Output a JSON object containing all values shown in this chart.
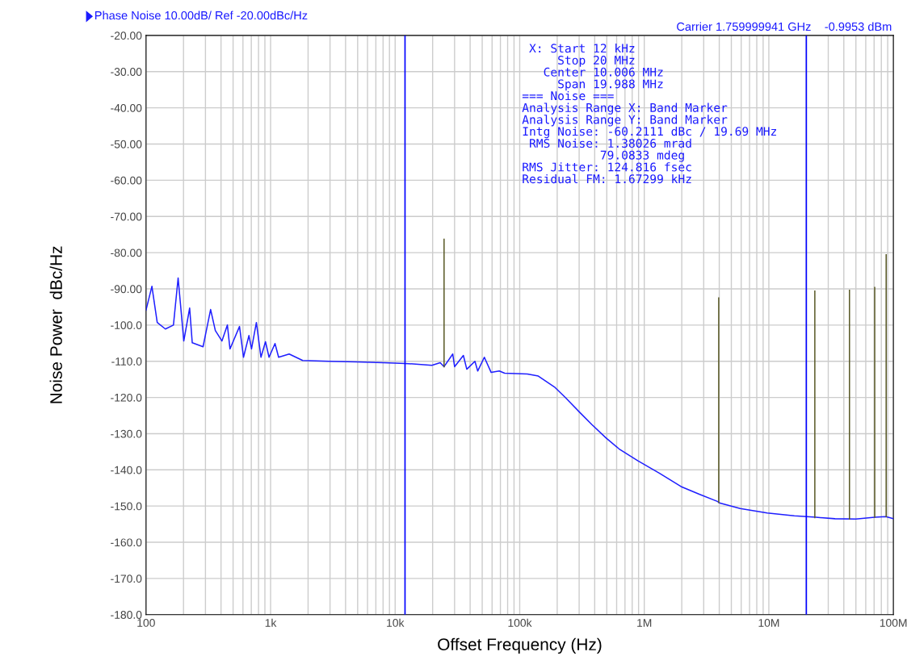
{
  "chart_data": {
    "type": "line",
    "xlabel": "Offset Frequency (Hz)",
    "ylabel": "Noise Power  dBc/Hz",
    "log": "x",
    "grid": true,
    "marker": "none",
    "line_style": "solid",
    "xlim": [
      100,
      100000000
    ],
    "xticks": [
      100,
      {
        "value": 1000,
        "label": "1k"
      },
      {
        "value": 10000,
        "label": "10k"
      },
      {
        "value": 100000,
        "label": "100k"
      },
      {
        "value": 1000000,
        "label": "1M"
      },
      {
        "value": 10000000,
        "label": "10M"
      },
      {
        "value": 100000000,
        "label": "100M"
      }
    ],
    "ylim": [
      -180,
      -20
    ],
    "yticks": [
      {
        "value": -20,
        "label": "-20.00"
      },
      {
        "value": -30,
        "label": "-30.00"
      },
      {
        "value": -40,
        "label": "-40.00"
      },
      {
        "value": -50,
        "label": "-50.00"
      },
      {
        "value": -60,
        "label": "-60.00"
      },
      {
        "value": -70,
        "label": "-70.00"
      },
      {
        "value": -80,
        "label": "-80.00"
      },
      {
        "value": -90,
        "label": "-90.00"
      },
      {
        "value": -100,
        "label": "-100.0"
      },
      {
        "value": -110,
        "label": "-110.0"
      },
      {
        "value": -120,
        "label": "-120.0"
      },
      {
        "value": -130,
        "label": "-130.0"
      },
      {
        "value": -140,
        "label": "-140.0"
      },
      {
        "value": -150,
        "label": "-150.0"
      },
      {
        "value": -160,
        "label": "-160.0"
      },
      {
        "value": -170,
        "label": "-170.0"
      },
      {
        "value": -180,
        "label": "-180.0"
      }
    ],
    "series": [
      {
        "color": "#1f1fff",
        "x": [
          100,
          111.5,
          123,
          143,
          166,
          181,
          201,
          224,
          235,
          287,
          330,
          360,
          407,
          450,
          472,
          563,
          606,
          670,
          703,
          769,
          837,
          910,
          972,
          1085,
          1160,
          1410,
          1810,
          2960,
          4900,
          8040,
          12000,
          19700,
          23000,
          24700,
          29000,
          30000,
          35300,
          37600,
          43700,
          46000,
          52000,
          59000,
          68500,
          75700,
          115000,
          141000,
          190000,
          232000,
          297000,
          380000,
          490000,
          627000,
          890000,
          1320000,
          1970000,
          2790000,
          3860000,
          4060000,
          5900000,
          9700000,
          16000000,
          23900000,
          34000000,
          50000000,
          71000000,
          87000000,
          100000000
        ],
        "values": [
          -95.9,
          -89.3,
          -99.3,
          -101.1,
          -100,
          -87,
          -104.4,
          -95.3,
          -104.9,
          -106,
          -95.7,
          -101.5,
          -104.4,
          -100,
          -106.6,
          -100.4,
          -108.9,
          -102.9,
          -106.6,
          -99.3,
          -108.9,
          -104.6,
          -108.9,
          -105.1,
          -108.9,
          -108,
          -109.8,
          -110,
          -110.2,
          -110.4,
          -110.6,
          -111.1,
          -110.4,
          -111.5,
          -108,
          -111.5,
          -108.4,
          -112.2,
          -110,
          -112.7,
          -108.9,
          -113.1,
          -112.7,
          -113.3,
          -113.5,
          -114.1,
          -117.1,
          -120,
          -123.8,
          -127.5,
          -131.1,
          -134.2,
          -137.5,
          -140.9,
          -144.6,
          -146.8,
          -148.7,
          -149.2,
          -150.7,
          -151.9,
          -152.7,
          -153.1,
          -153.5,
          -153.6,
          -153.1,
          -152.9,
          -153.5
        ]
      },
      {
        "color": "#5a5a28",
        "x": [
          24700,
          24700
        ],
        "values": [
          -111.5,
          -76.3
        ]
      },
      {
        "color": "#5a5a28",
        "x": [
          3960000,
          3960000
        ],
        "values": [
          -149,
          -92.5
        ]
      },
      {
        "color": "#5a5a28",
        "x": [
          23400000,
          23400000
        ],
        "values": [
          -153.2,
          -90.6
        ]
      },
      {
        "color": "#5a5a28",
        "x": [
          44400000,
          44400000
        ],
        "values": [
          -153.6,
          -90.4
        ]
      },
      {
        "color": "#5a5a28",
        "x": [
          70800000,
          70800000
        ],
        "values": [
          -153.1,
          -89.6
        ]
      },
      {
        "color": "#5a5a28",
        "x": [
          87500000,
          87500000
        ],
        "values": [
          -152.9,
          -80.6
        ]
      }
    ],
    "ref_lines": [
      {
        "axis": "x",
        "value": 12000,
        "color": "#0000ff"
      },
      {
        "axis": "x",
        "value": 20000000,
        "color": "#0000ff"
      }
    ],
    "annotations": [
      "Phase Noise 10.00dB/ Ref -20.00dBc/Hz",
      "Carrier 1.759999941 GHz",
      "-0.9953 dBm",
      " X: Start 12 kHz",
      "     Stop 20 MHz",
      "   Center 10.006 MHz",
      "     Span 19.988 MHz",
      "=== Noise ===",
      "Analysis Range X: Band Marker",
      "Analysis Range Y: Band Marker",
      "Intg Noise: -60.2111 dBc / 19.69 MHz",
      " RMS Noise: 1.38026 mrad",
      "           79.0833 mdeg",
      "RMS Jitter: 124.816 fsec",
      "Residual FM: 1.67299 kHz"
    ]
  }
}
